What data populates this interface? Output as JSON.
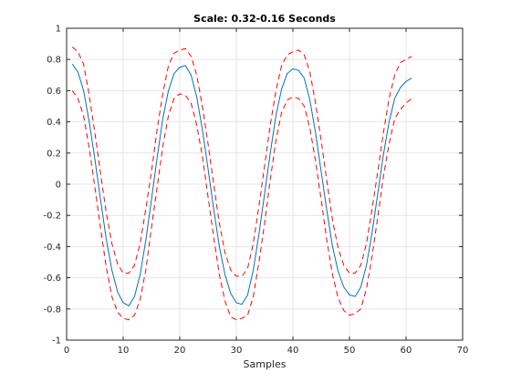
{
  "chart_data": {
    "type": "line",
    "title": "Scale: 0.32-0.16 Seconds",
    "xlabel": "Samples",
    "ylabel": "",
    "xlim": [
      0,
      70
    ],
    "ylim": [
      -1,
      1
    ],
    "xticks": [
      0,
      10,
      20,
      30,
      40,
      50,
      60,
      70
    ],
    "yticks": [
      -1,
      -0.8,
      -0.6,
      -0.4,
      -0.2,
      0,
      0.2,
      0.4,
      0.6,
      0.8,
      1
    ],
    "x_tick_labels": [
      "0",
      "10",
      "20",
      "30",
      "40",
      "50",
      "60",
      "70"
    ],
    "y_tick_labels": [
      "-1",
      "-0.8",
      "-0.6",
      "-0.4",
      "-0.2",
      "0",
      "0.2",
      "0.4",
      "0.6",
      "0.8",
      "1"
    ],
    "grid": true,
    "series": [
      {
        "style": "solid",
        "color": "#0072bd",
        "x": [
          1,
          2,
          3,
          4,
          5,
          6,
          7,
          8,
          9,
          10,
          11,
          12,
          13,
          14,
          15,
          16,
          17,
          18,
          19,
          20,
          21,
          22,
          23,
          24,
          25,
          26,
          27,
          28,
          29,
          30,
          31,
          32,
          33,
          34,
          35,
          36,
          37,
          38,
          39,
          40,
          41,
          42,
          43,
          44,
          45,
          46,
          47,
          48,
          49,
          50,
          51,
          52,
          53,
          54,
          55,
          56,
          57,
          58,
          59,
          60,
          61
        ],
        "y": [
          0.77,
          0.72,
          0.6,
          0.4,
          0.16,
          -0.1,
          -0.35,
          -0.55,
          -0.69,
          -0.76,
          -0.78,
          -0.72,
          -0.58,
          -0.36,
          -0.1,
          0.17,
          0.42,
          0.6,
          0.71,
          0.75,
          0.76,
          0.7,
          0.56,
          0.35,
          0.1,
          -0.16,
          -0.4,
          -0.58,
          -0.7,
          -0.76,
          -0.77,
          -0.71,
          -0.55,
          -0.32,
          -0.06,
          0.2,
          0.44,
          0.61,
          0.71,
          0.74,
          0.73,
          0.68,
          0.54,
          0.33,
          0.08,
          -0.17,
          -0.4,
          -0.56,
          -0.66,
          -0.71,
          -0.72,
          -0.66,
          -0.52,
          -0.31,
          -0.06,
          0.19,
          0.4,
          0.55,
          0.62,
          0.66,
          0.68
        ]
      },
      {
        "style": "dashed",
        "color": "#ff0000",
        "x": [
          1,
          2,
          3,
          4,
          5,
          6,
          7,
          8,
          9,
          10,
          11,
          12,
          13,
          14,
          15,
          16,
          17,
          18,
          19,
          20,
          21,
          22,
          23,
          24,
          25,
          26,
          27,
          28,
          29,
          30,
          31,
          32,
          33,
          34,
          35,
          36,
          37,
          38,
          39,
          40,
          41,
          42,
          43,
          44,
          45,
          46,
          47,
          48,
          49,
          50,
          51,
          52,
          53,
          54,
          55,
          56,
          57,
          58,
          59,
          60,
          61
        ],
        "y": [
          0.88,
          0.85,
          0.77,
          0.57,
          0.33,
          0.07,
          -0.18,
          -0.38,
          -0.51,
          -0.57,
          -0.57,
          -0.52,
          -0.38,
          -0.16,
          0.08,
          0.35,
          0.58,
          0.76,
          0.84,
          0.86,
          0.87,
          0.82,
          0.7,
          0.5,
          0.26,
          0.0,
          -0.25,
          -0.44,
          -0.55,
          -0.59,
          -0.59,
          -0.54,
          -0.38,
          -0.14,
          0.12,
          0.38,
          0.6,
          0.76,
          0.83,
          0.85,
          0.86,
          0.83,
          0.72,
          0.52,
          0.28,
          0.02,
          -0.23,
          -0.41,
          -0.52,
          -0.57,
          -0.57,
          -0.52,
          -0.38,
          -0.16,
          0.08,
          0.33,
          0.55,
          0.7,
          0.78,
          0.8,
          0.82
        ]
      },
      {
        "style": "dashed",
        "color": "#ff0000",
        "x": [
          1,
          2,
          3,
          4,
          5,
          6,
          7,
          8,
          9,
          10,
          11,
          12,
          13,
          14,
          15,
          16,
          17,
          18,
          19,
          20,
          21,
          22,
          23,
          24,
          25,
          26,
          27,
          28,
          29,
          30,
          31,
          32,
          33,
          34,
          35,
          36,
          37,
          38,
          39,
          40,
          41,
          42,
          43,
          44,
          45,
          46,
          47,
          48,
          49,
          50,
          51,
          52,
          53,
          54,
          55,
          56,
          57,
          58,
          59,
          60,
          61
        ],
        "y": [
          0.6,
          0.55,
          0.44,
          0.23,
          -0.02,
          -0.28,
          -0.53,
          -0.72,
          -0.82,
          -0.86,
          -0.87,
          -0.84,
          -0.74,
          -0.55,
          -0.28,
          -0.02,
          0.24,
          0.44,
          0.55,
          0.58,
          0.57,
          0.52,
          0.38,
          0.18,
          -0.08,
          -0.34,
          -0.58,
          -0.75,
          -0.85,
          -0.87,
          -0.86,
          -0.84,
          -0.72,
          -0.5,
          -0.25,
          0.03,
          0.28,
          0.46,
          0.54,
          0.56,
          0.55,
          0.5,
          0.36,
          0.15,
          -0.1,
          -0.36,
          -0.58,
          -0.73,
          -0.81,
          -0.84,
          -0.83,
          -0.8,
          -0.67,
          -0.46,
          -0.21,
          0.05,
          0.26,
          0.42,
          0.48,
          0.52,
          0.55
        ]
      }
    ]
  }
}
